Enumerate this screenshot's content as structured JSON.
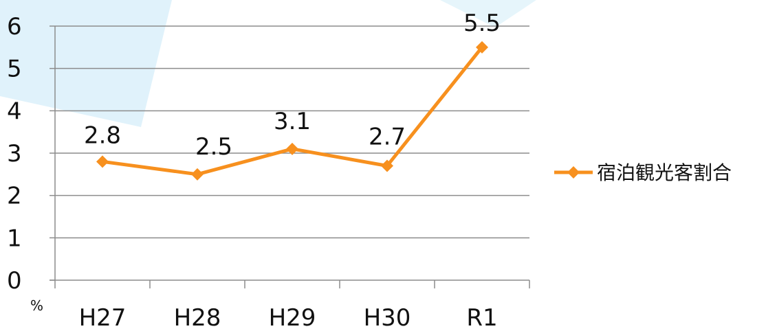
{
  "chart_data": {
    "type": "line",
    "categories": [
      "H27",
      "H28",
      "H29",
      "H30",
      "R1"
    ],
    "series": [
      {
        "name": "宿泊観光客割合",
        "values": [
          2.8,
          2.5,
          3.1,
          2.7,
          5.5
        ]
      }
    ],
    "data_labels": [
      "2.8",
      "2.5",
      "3.1",
      "2.7",
      "5.5"
    ],
    "y_ticks": [
      "0",
      "1",
      "2",
      "3",
      "4",
      "5",
      "6"
    ],
    "ylim": [
      0,
      6
    ],
    "y_unit": "%",
    "title": "",
    "xlabel": "",
    "ylabel": "",
    "grid": true,
    "legend_position": "right",
    "colors": {
      "series": "#F7901E",
      "grid": "#8C8C8C",
      "axis": "#8C8C8C",
      "background_decor": "#D6EEF9"
    }
  }
}
